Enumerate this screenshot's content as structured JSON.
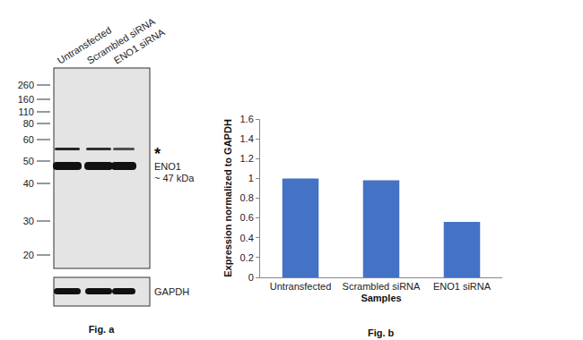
{
  "blot": {
    "lanes": [
      "Untransfected",
      "Scrambled siRNA",
      "ENO1 siRNA"
    ],
    "markers": [
      260,
      160,
      110,
      80,
      60,
      50,
      40,
      30,
      20
    ],
    "bands": [
      {
        "label": "*"
      },
      {
        "label": "ENO1",
        "sublabel": "~ 47 kDa"
      }
    ],
    "loading_control": "GAPDH",
    "caption": "Fig. a"
  },
  "chart_data": {
    "type": "bar",
    "categories": [
      "Untransfected",
      "Scrambled siRNA",
      "ENO1 siRNA"
    ],
    "values": [
      1.0,
      0.98,
      0.56
    ],
    "color": "#4472c4",
    "x_label": "Samples",
    "y_label": "Expression normalized to GAPDH",
    "ylim": [
      0,
      1.6
    ],
    "yticks": [
      0,
      0.2,
      0.4,
      0.6,
      0.8,
      1,
      1.2,
      1.4,
      1.6
    ],
    "grid": false,
    "annotations": [
      "Fig. b"
    ]
  }
}
